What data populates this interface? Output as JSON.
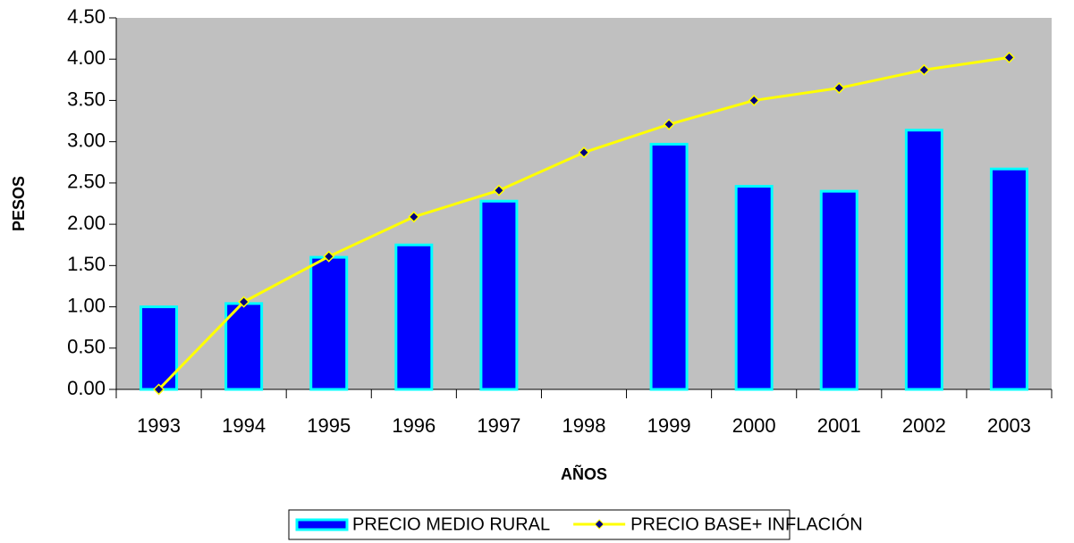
{
  "chart_data": {
    "type": "bar",
    "x_label": "AÑOS",
    "y_label": "PESOS",
    "categories": [
      "1993",
      "1994",
      "1995",
      "1996",
      "1997",
      "1998",
      "1999",
      "2000",
      "2001",
      "2002",
      "2003"
    ],
    "series": [
      {
        "name": "PRECIO MEDIO RURAL",
        "type": "bar",
        "color": "#0000ff",
        "edge_color": "#00ffff",
        "values": [
          1.0,
          1.04,
          1.6,
          1.75,
          2.28,
          null,
          2.97,
          2.46,
          2.4,
          3.14,
          2.67
        ]
      },
      {
        "name": "PRECIO BASE+ INFLACIÓN",
        "type": "line",
        "color": "#ffff00",
        "marker_color": "#000080",
        "values": [
          0.0,
          1.06,
          1.61,
          2.09,
          2.41,
          2.87,
          3.21,
          3.5,
          3.65,
          3.87,
          4.02
        ]
      }
    ],
    "ylim": [
      0,
      4.5
    ],
    "yticks": [
      {
        "value": 0,
        "label": "0.00"
      },
      {
        "value": 0.5,
        "label": "0.50"
      },
      {
        "value": 1,
        "label": "1.00"
      },
      {
        "value": 1.5,
        "label": "1.50"
      },
      {
        "value": 2,
        "label": "2.00"
      },
      {
        "value": 2.5,
        "label": "2.50"
      },
      {
        "value": 3,
        "label": "3.00"
      },
      {
        "value": 3.5,
        "label": "3.50"
      },
      {
        "value": 4,
        "label": "4.00"
      },
      {
        "value": 4.5,
        "label": "4.50"
      }
    ],
    "plot_background": "#c0c0c0",
    "legend": "bottom"
  }
}
